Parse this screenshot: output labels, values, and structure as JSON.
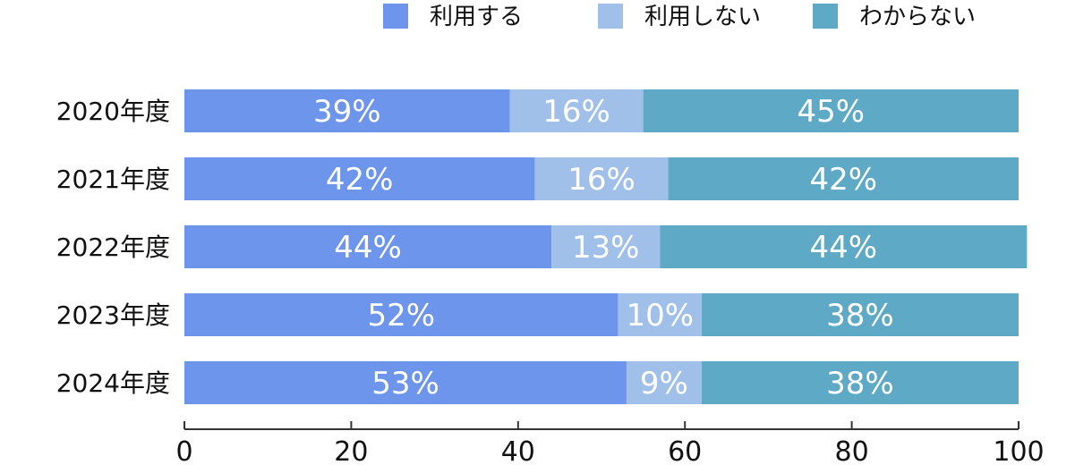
{
  "chart_data": {
    "type": "bar",
    "orientation": "horizontal",
    "stacked": true,
    "categories": [
      "2020年度",
      "2021年度",
      "2022年度",
      "2023年度",
      "2024年度"
    ],
    "series": [
      {
        "name": "利用する",
        "values": [
          39,
          42,
          44,
          52,
          53
        ],
        "labels": [
          "39%",
          "42%",
          "44%",
          "52%",
          "53%"
        ],
        "color": "#6d95ec"
      },
      {
        "name": "利用しない",
        "values": [
          16,
          16,
          13,
          10,
          9
        ],
        "labels": [
          "16%",
          "16%",
          "13%",
          "10%",
          "9%"
        ],
        "color": "#a0c0ea"
      },
      {
        "name": "わからない",
        "values": [
          45,
          42,
          44,
          38,
          38
        ],
        "labels": [
          "45%",
          "42%",
          "44%",
          "38%",
          "38%"
        ],
        "color": "#5ea9c6"
      }
    ],
    "xlim": [
      0,
      100
    ],
    "xticks": [
      0,
      20,
      40,
      60,
      80,
      100
    ],
    "xtick_labels": [
      "0",
      "20",
      "40",
      "60",
      "80",
      "100"
    ],
    "legend_position": "top-right",
    "grid": false,
    "axis_color": "#333333"
  }
}
